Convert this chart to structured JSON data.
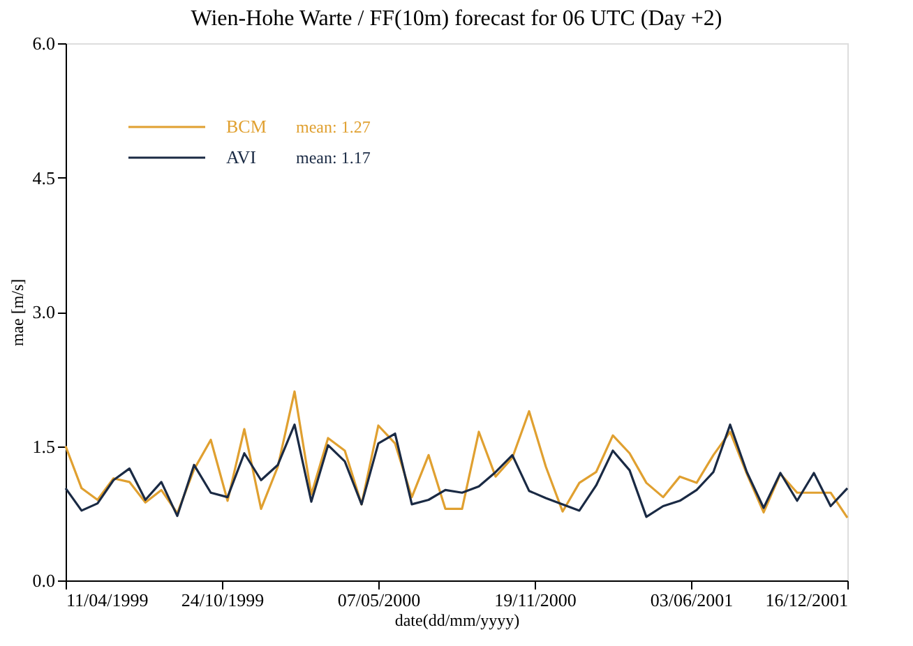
{
  "chart_data": {
    "type": "line",
    "title": "Wien-Hohe Warte / FF(10m) forecast for 06 UTC (Day +2)",
    "xlabel": "date(dd/mm/yyyy)",
    "ylabel": "mae [m/s]",
    "x": [
      "1999-04-11",
      "1999-05-01",
      "1999-05-21",
      "1999-06-10",
      "1999-06-30",
      "1999-07-20",
      "1999-08-09",
      "1999-08-29",
      "1999-09-19",
      "1999-10-10",
      "1999-10-31",
      "1999-11-21",
      "1999-12-12",
      "2000-01-02",
      "2000-01-23",
      "2000-02-13",
      "2000-03-05",
      "2000-03-26",
      "2000-04-16",
      "2000-05-07",
      "2000-05-28",
      "2000-06-18",
      "2000-07-09",
      "2000-07-30",
      "2000-08-20",
      "2000-09-10",
      "2000-10-01",
      "2000-10-22",
      "2000-11-12",
      "2000-12-03",
      "2000-12-24",
      "2001-01-14",
      "2001-02-04",
      "2001-02-25",
      "2001-03-18",
      "2001-04-08",
      "2001-04-29",
      "2001-05-20",
      "2001-06-10",
      "2001-07-01",
      "2001-07-22",
      "2001-08-12",
      "2001-09-02",
      "2001-09-23",
      "2001-10-14",
      "2001-11-04",
      "2001-11-25",
      "2001-12-16"
    ],
    "series": [
      {
        "name": "BCM",
        "color": "#e0a030",
        "values": [
          1.5,
          1.03,
          0.9,
          1.14,
          1.1,
          0.87,
          1.01,
          0.75,
          1.24,
          1.57,
          0.89,
          1.69,
          0.8,
          1.27,
          2.11,
          0.96,
          1.59,
          1.45,
          0.85,
          1.73,
          1.53,
          0.93,
          1.4,
          0.8,
          0.8,
          1.66,
          1.16,
          1.37,
          1.89,
          1.27,
          0.77,
          1.09,
          1.21,
          1.62,
          1.42,
          1.09,
          0.93,
          1.16,
          1.09,
          1.4,
          1.66,
          1.19,
          0.76,
          1.19,
          0.98,
          0.98,
          0.98,
          0.7
        ]
      },
      {
        "name": "AVI",
        "color": "#1a2a44",
        "values": [
          1.03,
          0.78,
          0.86,
          1.12,
          1.25,
          0.9,
          1.1,
          0.72,
          1.29,
          0.98,
          0.93,
          1.42,
          1.12,
          1.29,
          1.74,
          0.88,
          1.51,
          1.33,
          0.85,
          1.53,
          1.64,
          0.85,
          0.9,
          1.01,
          0.98,
          1.05,
          1.21,
          1.4,
          1.0,
          0.92,
          0.85,
          0.78,
          1.06,
          1.45,
          1.23,
          0.71,
          0.83,
          0.89,
          1.01,
          1.21,
          1.74,
          1.21,
          0.81,
          1.2,
          0.89,
          1.2,
          0.83,
          1.03
        ]
      }
    ],
    "annotations": [
      "mean: 1.27",
      "mean: 1.17"
    ],
    "xlim": [
      "1999-04-11",
      "2001-12-16"
    ],
    "xticks": [
      {
        "value": "1999-04-11",
        "label": "11/04/1999"
      },
      {
        "value": "1999-10-24",
        "label": "24/10/1999"
      },
      {
        "value": "2000-05-07",
        "label": "07/05/2000"
      },
      {
        "value": "2000-11-19",
        "label": "19/11/2000"
      },
      {
        "value": "2001-06-03",
        "label": "03/06/2001"
      },
      {
        "value": "2001-12-16",
        "label": "16/12/2001"
      }
    ],
    "ylim": [
      0,
      6
    ],
    "yticks": [
      {
        "value": 0,
        "label": "0.0"
      },
      {
        "value": 1.5,
        "label": "1.5"
      },
      {
        "value": 3,
        "label": "3.0"
      },
      {
        "value": 4.5,
        "label": "4.5"
      },
      {
        "value": 6,
        "label": "6.0"
      }
    ],
    "legend": "top left",
    "grid": false
  }
}
